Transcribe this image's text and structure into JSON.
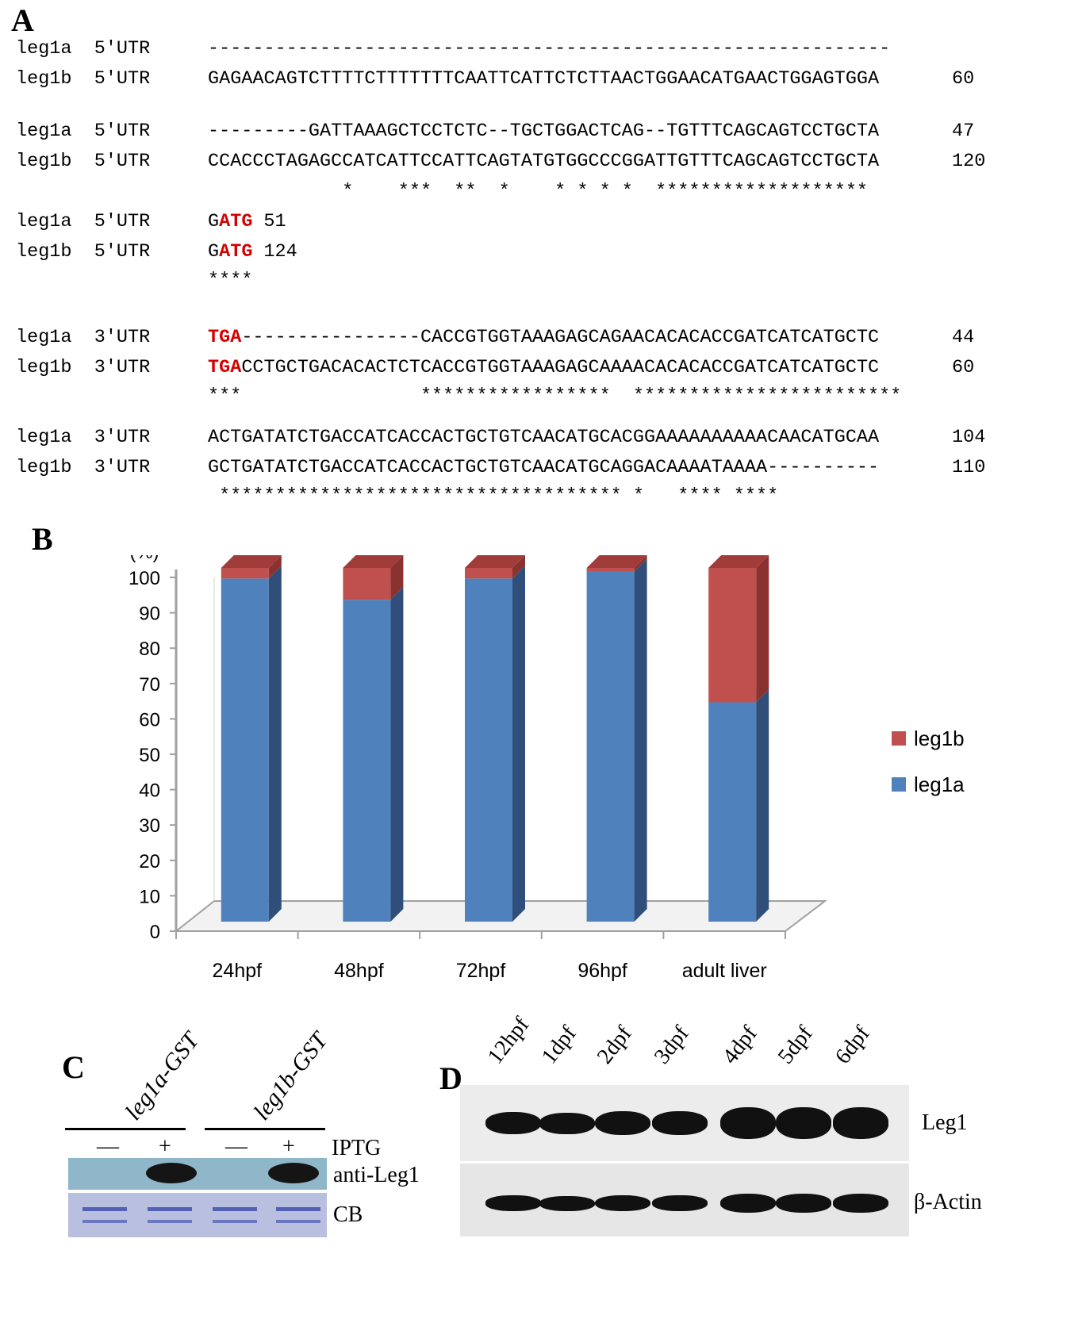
{
  "panel_a": {
    "label": "A",
    "lines": [
      {
        "name": "leg1a",
        "region": "5'UTR",
        "seq": "-------------------------------------------------------------",
        "num": ""
      },
      {
        "name": "leg1b",
        "region": "5'UTR",
        "seq": "GAGAACAGTCTTTTCTTTTTTTCAATTCATTCTCTTAACTGGAACATGAACTGGAGTGGA",
        "num": "60"
      },
      {
        "name": "leg1a",
        "region": "5'UTR",
        "seq": "---------GATTAAAGCTCCTCTC--TGCTGGACTCAG--TGTTTCAGCAGTCCTGCTA",
        "num": "47"
      },
      {
        "name": "leg1b",
        "region": "5'UTR",
        "seq": "CCACCCTAGAGCCATCATTCCATTCAGTATGTGGCCCGGATTGTTTCAGCAGTCCTGCTA",
        "num": "120"
      },
      {
        "stars": "            *    ***  **  *    * * * *  *******************"
      },
      {
        "name": "leg1a",
        "region": "5'UTR",
        "seq_pre": "G",
        "seq_hl": "ATG",
        "seq_post": "",
        "num": "51"
      },
      {
        "name": "leg1b",
        "region": "5'UTR",
        "seq_pre": "G",
        "seq_hl": "ATG",
        "seq_post": "",
        "num": "124"
      },
      {
        "stars": "****"
      },
      {
        "name": "leg1a",
        "region": "3'UTR",
        "seq_pre": "",
        "seq_hl": "TGA",
        "seq_post": "----------------CACCGTGGTAAAGAGCAGAACACACACCGATCATCATGCTC",
        "num": "44"
      },
      {
        "name": "leg1b",
        "region": "3'UTR",
        "seq_pre": "",
        "seq_hl": "TGA",
        "seq_post": "CCTGCTGACACACTCTCACCGTGGTAAAGAGCAAAACACACACCGATCATCATGCTC",
        "num": "60"
      },
      {
        "stars": "***                *****************  ************************"
      },
      {
        "name": "leg1a",
        "region": "3'UTR",
        "seq": "ACTGATATCTGACCATCACCACTGCTGTCAACATGCACGGAAAAAAAAAACAACATGCAA",
        "num": "104"
      },
      {
        "name": "leg1b",
        "region": "3'UTR",
        "seq": "GCTGATATCTGACCATCACCACTGCTGTCAACATGCAGGACAAAATAAAA----------",
        "num": "110"
      },
      {
        "stars": " ************************************ *   **** ****"
      }
    ]
  },
  "panel_b": {
    "label": "B",
    "chart_data": {
      "type": "bar",
      "stacked": true,
      "categories": [
        "24hpf",
        "48hpf",
        "72hpf",
        "96hpf",
        "adult liver"
      ],
      "series": [
        {
          "name": "leg1a",
          "values": [
            97,
            91,
            97,
            99,
            62
          ],
          "color": "#4f81bd"
        },
        {
          "name": "leg1b",
          "values": [
            3,
            9,
            3,
            1,
            38
          ],
          "color": "#c0504d"
        }
      ],
      "ylabel": "(%)",
      "yticks": [
        0,
        10,
        20,
        30,
        40,
        50,
        60,
        70,
        80,
        90,
        100
      ],
      "ylim": [
        0,
        100
      ],
      "legend_position": "right"
    }
  },
  "panel_c": {
    "label": "C",
    "constructs": [
      "leg1a-GST",
      "leg1b-GST"
    ],
    "iptg_signs": [
      "—",
      "+",
      "—",
      "+"
    ],
    "row_labels": {
      "iptg": "IPTG",
      "blot": "anti-Leg1",
      "stain": "CB"
    },
    "blot_bg": "#8fb6c9",
    "stain_bg": "#b8bfdf"
  },
  "panel_d": {
    "label": "D",
    "timepoints": [
      "12hpf",
      "1dpf",
      "2dpf",
      "3dpf",
      "4dpf",
      "5dpf",
      "6dpf"
    ],
    "row_labels": {
      "top": "Leg1",
      "bottom": "β-Actin"
    },
    "leg1_intensity": [
      0.55,
      0.5,
      0.65,
      0.6,
      1.0,
      1.0,
      1.0
    ]
  }
}
